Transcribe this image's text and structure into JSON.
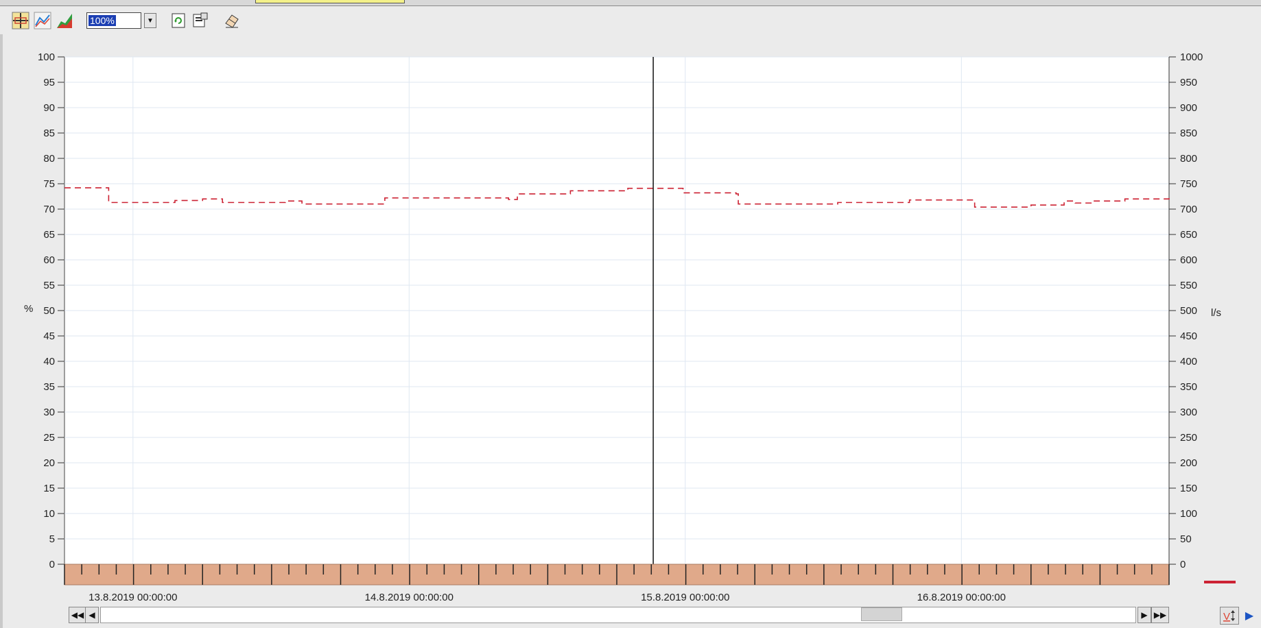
{
  "toolbar": {
    "zoom_value": "100%",
    "icons": [
      "crosshair-ruler-icon",
      "line-chart-icon",
      "area-chart-icon",
      "refresh-doc-icon",
      "properties-doc-icon",
      "eraser-icon"
    ]
  },
  "chart_data": {
    "type": "line",
    "yleft": {
      "label": "%",
      "min": 0,
      "max": 100,
      "step": 5,
      "ticks": [
        "0",
        "5",
        "10",
        "15",
        "20",
        "25",
        "30",
        "35",
        "40",
        "45",
        "50",
        "55",
        "60",
        "65",
        "70",
        "75",
        "80",
        "85",
        "90",
        "95",
        "100"
      ]
    },
    "yright": {
      "label": "l/s",
      "min": 0,
      "max": 1000,
      "step": 50,
      "ticks": [
        "0",
        "50",
        "100",
        "150",
        "200",
        "250",
        "300",
        "350",
        "400",
        "450",
        "500",
        "550",
        "600",
        "650",
        "700",
        "750",
        "800",
        "850",
        "900",
        "950",
        "1000"
      ]
    },
    "x_labels": [
      "13.8.2019 00:00:00",
      "14.8.2019 00:00:00",
      "15.8.2019 00:00:00",
      "16.8.2019 00:00:00"
    ],
    "series": [
      {
        "color": "#cc2233",
        "style": "dashed-step",
        "axis": "left",
        "points": [
          [
            0.0,
            74.2
          ],
          [
            0.04,
            71.3
          ],
          [
            0.1,
            71.7
          ],
          [
            0.125,
            72.0
          ],
          [
            0.143,
            71.3
          ],
          [
            0.2,
            71.6
          ],
          [
            0.215,
            71.0
          ],
          [
            0.29,
            72.2
          ],
          [
            0.4,
            72.2
          ],
          [
            0.402,
            71.9
          ],
          [
            0.41,
            73.0
          ],
          [
            0.455,
            73.0
          ],
          [
            0.458,
            73.6
          ],
          [
            0.505,
            73.6
          ],
          [
            0.51,
            74.1
          ],
          [
            0.54,
            74.1
          ],
          [
            0.56,
            73.2
          ],
          [
            0.608,
            73.0
          ],
          [
            0.61,
            71.0
          ],
          [
            0.69,
            71.0
          ],
          [
            0.7,
            71.3
          ],
          [
            0.762,
            71.3
          ],
          [
            0.765,
            71.8
          ],
          [
            0.82,
            71.8
          ],
          [
            0.824,
            70.4
          ],
          [
            0.855,
            70.4
          ],
          [
            0.875,
            70.8
          ],
          [
            0.905,
            71.6
          ],
          [
            0.915,
            71.2
          ],
          [
            0.93,
            71.6
          ],
          [
            0.96,
            72.0
          ],
          [
            1.0,
            72.3
          ]
        ]
      }
    ],
    "cursor_x_fraction": 0.533
  }
}
